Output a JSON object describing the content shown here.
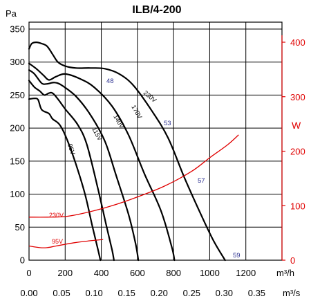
{
  "chart_data": {
    "type": "line",
    "title": "ILB/4-200",
    "y_left": {
      "label": "Pa",
      "min": 0,
      "max": 350,
      "ticks": [
        "0",
        "50",
        "100",
        "150",
        "200",
        "250",
        "300",
        "350"
      ]
    },
    "y_right": {
      "label": "W",
      "min": 0,
      "max": 400,
      "ticks": [
        "0",
        "100",
        "200",
        "300",
        "400"
      ]
    },
    "x_primary": {
      "label": "m³/h",
      "min": 0,
      "max": 1400,
      "ticks": [
        "0",
        "200",
        "400",
        "600",
        "800",
        "1000",
        "1200"
      ]
    },
    "x_secondary": {
      "label": "m³/s",
      "ticks": [
        "0.00",
        "0.05",
        "0.10",
        "0.15",
        "0.20",
        "0.25",
        "0.30",
        "0.35"
      ]
    },
    "pressure_series": [
      {
        "name": "95V",
        "points": [
          [
            0,
            244
          ],
          [
            30,
            245
          ],
          [
            50,
            243
          ],
          [
            70,
            228
          ],
          [
            110,
            222
          ],
          [
            130,
            214
          ],
          [
            170,
            205
          ],
          [
            210,
            183
          ],
          [
            260,
            145
          ],
          [
            310,
            100
          ],
          [
            350,
            52
          ],
          [
            380,
            18
          ],
          [
            395,
            0
          ]
        ]
      },
      {
        "name": "115V",
        "points": [
          [
            0,
            272
          ],
          [
            30,
            262
          ],
          [
            60,
            256
          ],
          [
            85,
            250
          ],
          [
            110,
            253
          ],
          [
            130,
            253
          ],
          [
            160,
            244
          ],
          [
            200,
            229
          ],
          [
            270,
            205
          ],
          [
            320,
            175
          ],
          [
            380,
            110
          ],
          [
            430,
            50
          ],
          [
            460,
            15
          ],
          [
            470,
            0
          ]
        ]
      },
      {
        "name": "140V",
        "points": [
          [
            0,
            288
          ],
          [
            30,
            282
          ],
          [
            70,
            268
          ],
          [
            100,
            267
          ],
          [
            140,
            269
          ],
          [
            180,
            265
          ],
          [
            260,
            248
          ],
          [
            340,
            220
          ],
          [
            420,
            180
          ],
          [
            480,
            130
          ],
          [
            550,
            70
          ],
          [
            590,
            25
          ],
          [
            605,
            0
          ]
        ]
      },
      {
        "name": "170V",
        "points": [
          [
            0,
            298
          ],
          [
            40,
            290
          ],
          [
            80,
            280
          ],
          [
            110,
            273
          ],
          [
            150,
            278
          ],
          [
            200,
            282
          ],
          [
            280,
            275
          ],
          [
            360,
            262
          ],
          [
            460,
            233
          ],
          [
            550,
            190
          ],
          [
            640,
            130
          ],
          [
            730,
            75
          ],
          [
            790,
            20
          ],
          [
            805,
            0
          ]
        ]
      },
      {
        "name": "230V",
        "points": [
          [
            0,
            320
          ],
          [
            15,
            328
          ],
          [
            40,
            330
          ],
          [
            70,
            328
          ],
          [
            100,
            324
          ],
          [
            130,
            312
          ],
          [
            160,
            300
          ],
          [
            200,
            294
          ],
          [
            260,
            291
          ],
          [
            340,
            291
          ],
          [
            420,
            290
          ],
          [
            500,
            282
          ],
          [
            580,
            264
          ],
          [
            680,
            226
          ],
          [
            770,
            185
          ],
          [
            860,
            125
          ],
          [
            950,
            70
          ],
          [
            1020,
            30
          ],
          [
            1085,
            0
          ]
        ]
      }
    ],
    "power_series": [
      {
        "name": "230V",
        "points": [
          [
            0,
            79
          ],
          [
            100,
            79
          ],
          [
            200,
            80
          ],
          [
            300,
            86
          ],
          [
            450,
            99
          ],
          [
            600,
            116
          ],
          [
            750,
            136
          ],
          [
            900,
            163
          ],
          [
            1000,
            188
          ],
          [
            1100,
            212
          ],
          [
            1160,
            230
          ]
        ]
      },
      {
        "name": "95V",
        "points": [
          [
            0,
            26
          ],
          [
            60,
            23
          ],
          [
            100,
            23
          ],
          [
            150,
            26
          ],
          [
            250,
            32
          ],
          [
            350,
            36
          ],
          [
            410,
            38
          ]
        ]
      }
    ],
    "efficiency_labels": [
      "48",
      "53",
      "57",
      "59"
    ],
    "curve_color": "#000000",
    "power_color": "#e00000",
    "efficiency_color": "#2a2f8f"
  }
}
